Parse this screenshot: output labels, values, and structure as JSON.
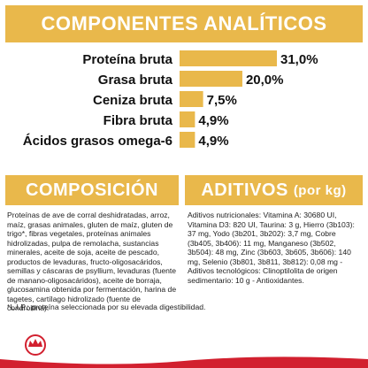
{
  "header": {
    "title": "COMPONENTES ANALÍTICOS"
  },
  "chart_data": {
    "type": "bar",
    "orientation": "horizontal",
    "categories": [
      "Proteína bruta",
      "Grasa bruta",
      "Ceniza bruta",
      "Fibra bruta",
      "Ácidos grasos omega-6"
    ],
    "values": [
      31.0,
      20.0,
      7.5,
      4.9,
      4.9
    ],
    "value_labels": [
      "31,0%",
      "20,0%",
      "7,5%",
      "4,9%",
      "4,9%"
    ],
    "bar_color": "#e9b84b",
    "xlim": [
      0,
      31.0
    ]
  },
  "composicion": {
    "title": "COMPOSICIÓN",
    "text": "Proteínas de ave de corral deshidratadas, arroz, maíz, grasas animales, gluten de maíz, gluten de trigo*, fibras vegetales, proteínas animales hidrolizadas, pulpa de remolacha, sustancias minerales, aceite de soja, aceite de pescado, productos de levaduras, fructo-oligosacáridos, semillas y cáscaras de psyllium, levaduras (fuente de manano-oligosacáridos), aceite de borraja, glucosamina obtenida por fermentación, harina de tagetes, cartílago hidrolizado (fuente de condroitina)."
  },
  "aditivos": {
    "title": "ADITIVOS",
    "unit": "(por kg)",
    "text": "Aditivos nutricionales: Vitamina A: 30680 UI, Vitamina D3: 820 UI, Taurina: 3 g, Hierro (3b103): 37 mg, Yodo (3b201, 3b202): 3,7 mg, Cobre (3b405, 3b406): 11 mg, Manganeso (3b502, 3b504): 48 mg, Zinc (3b603, 3b605, 3b606): 140 mg, Selenio (3b801, 3b811, 3b812): 0,08 mg - Aditivos tecnológicos: Clinoptilolita de origen sedimentario: 10 g - Antioxidantes."
  },
  "footnote": "*L.I.P.: proteína seleccionada por su elevada digestibilidad.",
  "footer": {
    "logo": "royal-canin-crown-logo",
    "accent_color": "#d2202f"
  }
}
